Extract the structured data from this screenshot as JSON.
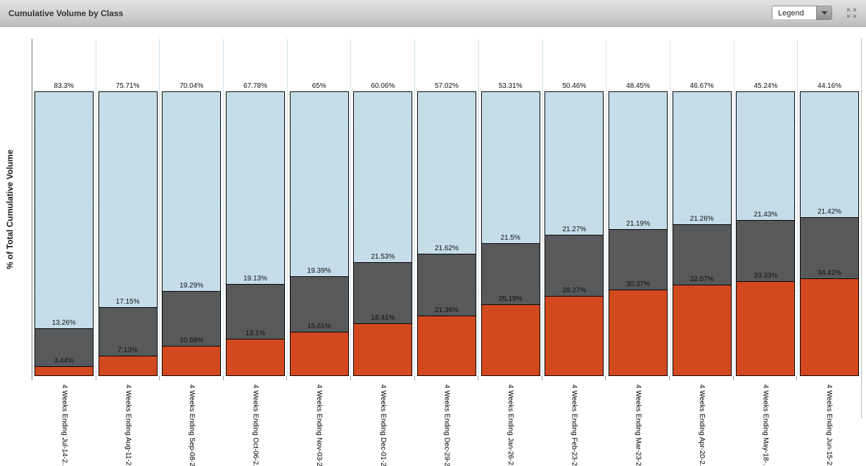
{
  "toolbar": {
    "title": "Cumulative Volume by Class",
    "legend_dropdown_label": "Legend"
  },
  "chart": {
    "y_axis_title": "% of Total Cumulative Volume"
  },
  "colors": {
    "segment_bottom": "#d3491f",
    "segment_middle": "#58595b",
    "segment_top": "#c5dde9",
    "segment_border": "#050505",
    "category_separator": "#d2e4ee",
    "gridline": "#e4eef5",
    "toolbar_text": "#333333"
  },
  "chart_data": {
    "type": "bar",
    "stacked": true,
    "stacked_100_percent": true,
    "title": "Cumulative Volume by Class",
    "xlabel": "",
    "ylabel": "% of Total Cumulative Volume",
    "ylim": [
      0,
      100
    ],
    "grid": "faint horizontal gridlines at 30/60/90 plus light-blue vertical category separators",
    "legend_position": "collapsed in toolbar 'Legend' dropdown",
    "data_labels": "each segment's percent shown above its top edge",
    "categories": [
      "4 Weeks Ending Jul-14-2..",
      "4 Weeks Ending Aug-11-2..",
      "4 Weeks Ending Sep-08-2..",
      "4 Weeks Ending Oct-06-2..",
      "4 Weeks Ending Nov-03-2..",
      "4 Weeks Ending Dec-01-2..",
      "4 Weeks Ending Dec-29-2..",
      "4 Weeks Ending Jan-26-2..",
      "4 Weeks Ending Feb-23-2..",
      "4 Weeks Ending Mar-23-2..",
      "4 Weeks Ending Apr-20-2..",
      "4 Weeks Ending May-18-..",
      "4 Weeks Ending Jun-15-2.."
    ],
    "series": [
      {
        "name": "bottom-orange",
        "color": "#d3491f",
        "values": [
          3.44,
          7.13,
          10.68,
          13.1,
          15.61,
          18.41,
          21.36,
          25.19,
          28.27,
          30.37,
          32.07,
          33.33,
          34.42
        ]
      },
      {
        "name": "middle-gray",
        "color": "#58595b",
        "values": [
          13.26,
          17.15,
          19.29,
          19.13,
          19.39,
          21.53,
          21.62,
          21.5,
          21.27,
          21.19,
          21.26,
          21.43,
          21.42
        ]
      },
      {
        "name": "top-blue",
        "color": "#c5dde9",
        "values": [
          83.3,
          75.71,
          70.04,
          67.78,
          65,
          60.06,
          57.02,
          53.31,
          50.46,
          48.45,
          46.67,
          45.24,
          44.16
        ]
      }
    ]
  }
}
